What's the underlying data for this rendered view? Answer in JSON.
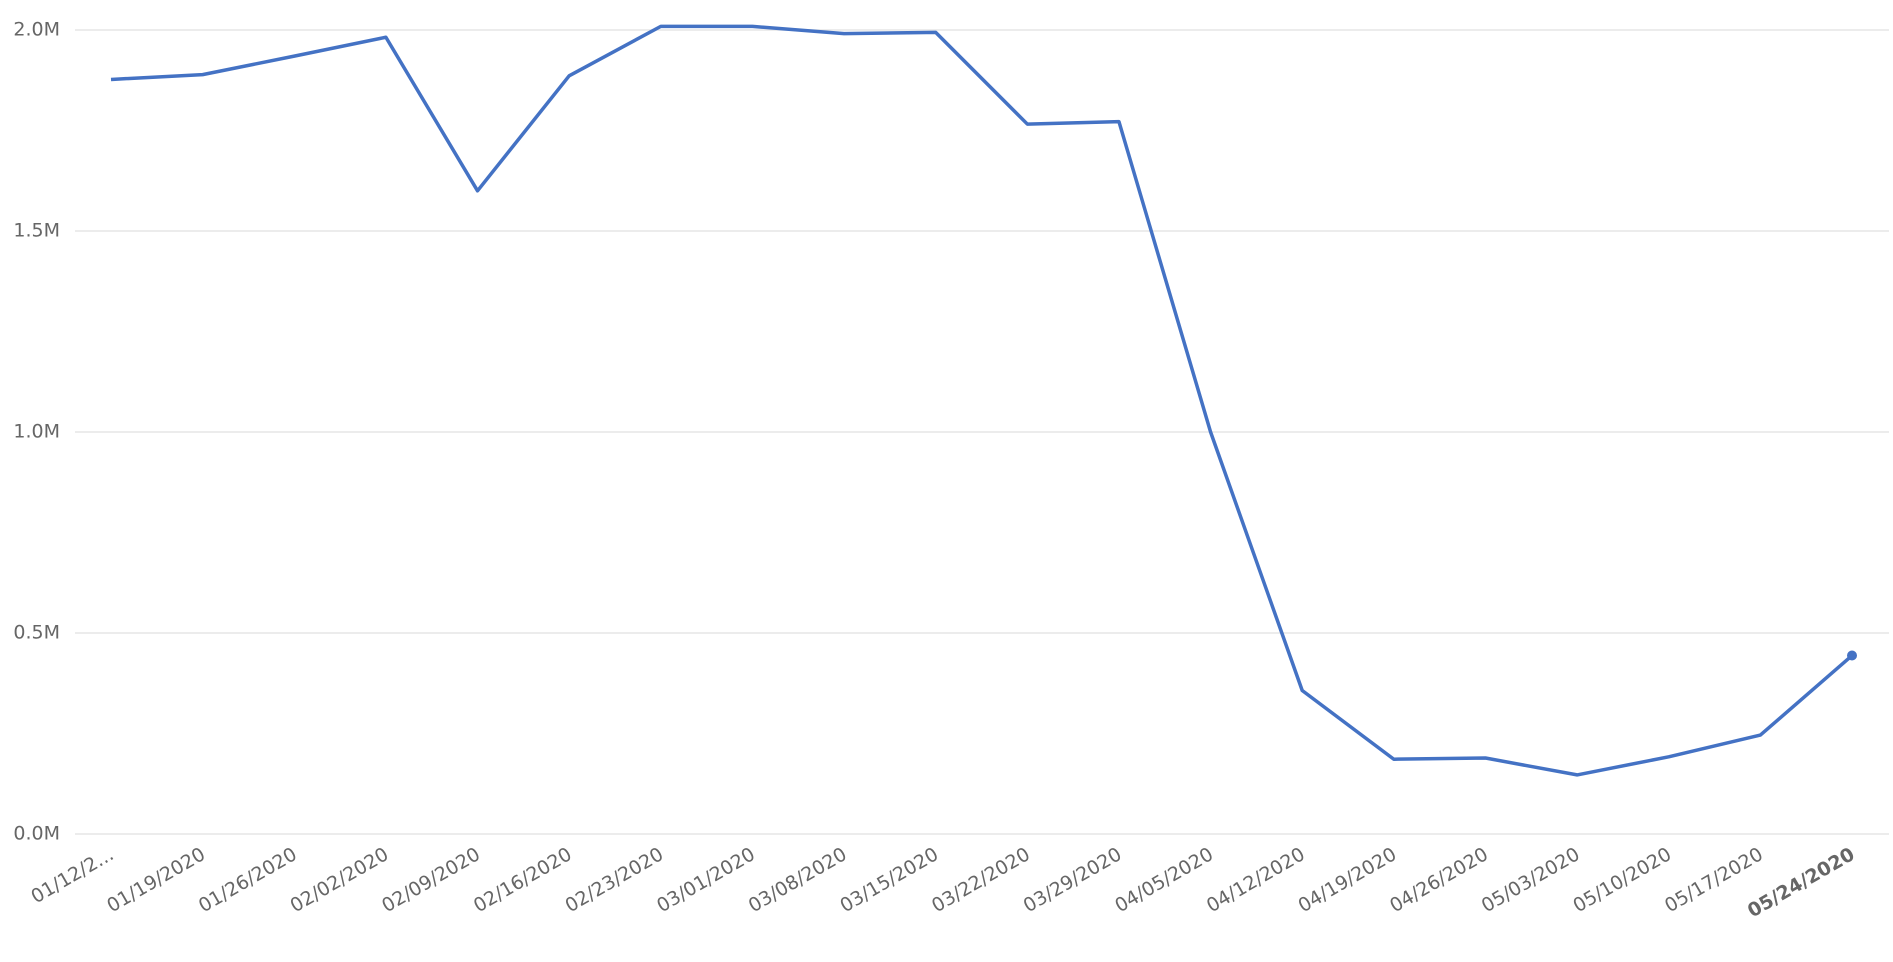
{
  "chart_data": {
    "type": "line",
    "categories": [
      "01/12/2...",
      "01/19/2020",
      "01/26/2020",
      "02/02/2020",
      "02/09/2020",
      "02/16/2020",
      "02/23/2020",
      "03/01/2020",
      "03/08/2020",
      "03/15/2020",
      "03/22/2020",
      "03/29/2020",
      "04/05/2020",
      "04/12/2020",
      "04/19/2020",
      "04/26/2020",
      "05/03/2020",
      "05/10/2020",
      "05/17/2020",
      "05/24/2020"
    ],
    "series": [
      {
        "color": "#4472c4",
        "values": [
          1.877,
          1.889,
          1.935,
          1.982,
          1.6,
          1.886,
          2.009,
          2.009,
          1.991,
          1.994,
          1.766,
          1.772,
          1.0,
          0.357,
          0.186,
          0.189,
          0.147,
          0.192,
          0.246,
          0.444
        ]
      }
    ],
    "ylim": [
      0,
      2.0
    ],
    "yticks": [
      {
        "value": 0,
        "label": "0.0M"
      },
      {
        "value": 0.5,
        "label": "0.5M"
      },
      {
        "value": 1.0,
        "label": "1.0M"
      },
      {
        "value": 1.5,
        "label": "1.5M"
      },
      {
        "value": 2.0,
        "label": "2.0M"
      }
    ],
    "grid": true,
    "highlight_last": true
  }
}
